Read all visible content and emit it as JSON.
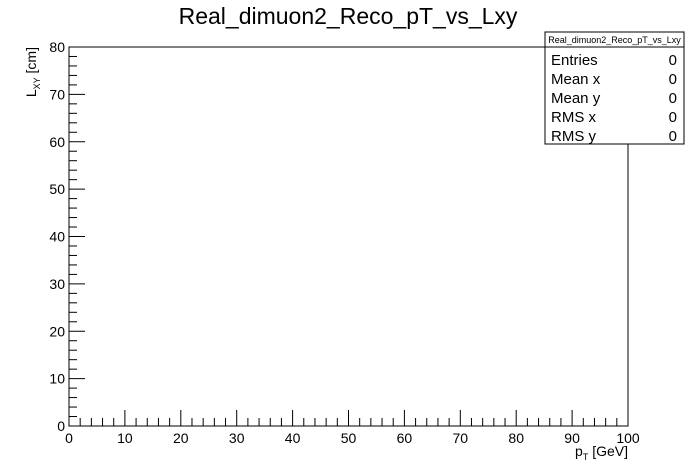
{
  "chart_data": {
    "type": "scatter",
    "title": "Real_dimuon2_Reco_pT_vs_Lxy",
    "xlabel": {
      "base": "p",
      "sub": "T",
      "suffix": " [GeV]"
    },
    "ylabel": {
      "base": "L",
      "sub": "XY",
      "suffix": " [cm]"
    },
    "xlim": [
      0,
      100
    ],
    "ylim": [
      0,
      80
    ],
    "x_ticks": [
      0,
      10,
      20,
      30,
      40,
      50,
      60,
      70,
      80,
      90,
      100
    ],
    "y_ticks": [
      0,
      10,
      20,
      30,
      40,
      50,
      60,
      70,
      80
    ],
    "points": [],
    "grid": false,
    "stats_box": {
      "title": "Real_dimuon2_Reco_pT_vs_Lxy",
      "placement": "top-right",
      "rows": [
        {
          "label": "Entries",
          "value": "0"
        },
        {
          "label": "Mean x",
          "value": "0"
        },
        {
          "label": "Mean y",
          "value": "0"
        },
        {
          "label": "RMS x",
          "value": "0"
        },
        {
          "label": "RMS y",
          "value": "0"
        }
      ]
    }
  }
}
